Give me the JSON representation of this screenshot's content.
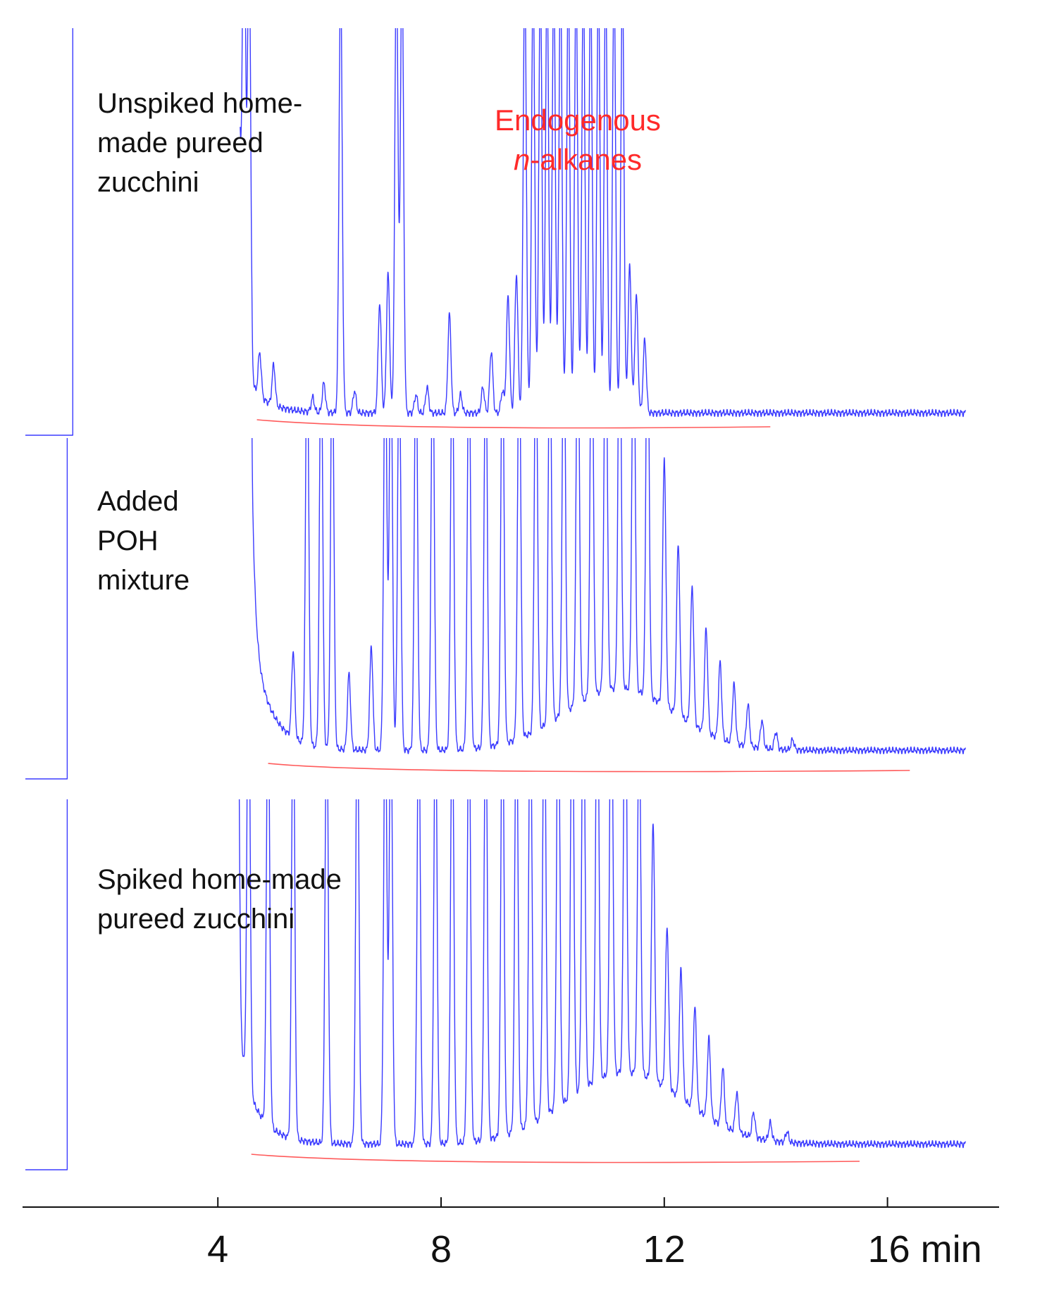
{
  "chart_data": {
    "type": "line",
    "xlabel": "",
    "ylabel": "",
    "xunit": "min",
    "xlim": [
      0.5,
      18.0
    ],
    "xticks": [
      4,
      8,
      12,
      16
    ],
    "xtick_labels": [
      "4",
      "8",
      "12",
      "16 min"
    ],
    "grid": false,
    "legend": "none",
    "colors": {
      "trace": "#3b3bff",
      "baseline": "#ff5a5a",
      "annotation": "#ff2a2a"
    },
    "panels": [
      {
        "label_lines": [
          "Unspiked home-",
          "made pureed",
          "zucchini"
        ],
        "annotation_lines": [
          "Endogenous",
          "n-alkanes"
        ],
        "solvent_delay_end": 1.4,
        "trace_start": 4.4,
        "run_end": 17.4,
        "background_decay": 0.12,
        "tail_level": 0.03,
        "peaks": [
          {
            "t": 4.47,
            "h": 1.2
          },
          {
            "t": 4.56,
            "h": 1.2
          },
          {
            "t": 4.75,
            "h": 0.12
          },
          {
            "t": 5.0,
            "h": 0.11
          },
          {
            "t": 5.7,
            "h": 0.04
          },
          {
            "t": 5.9,
            "h": 0.08
          },
          {
            "t": 6.2,
            "h": 1.2
          },
          {
            "t": 6.45,
            "h": 0.06
          },
          {
            "t": 6.9,
            "h": 0.3
          },
          {
            "t": 7.05,
            "h": 0.38
          },
          {
            "t": 7.2,
            "h": 1.25
          },
          {
            "t": 7.3,
            "h": 1.25
          },
          {
            "t": 7.55,
            "h": 0.05
          },
          {
            "t": 7.75,
            "h": 0.07
          },
          {
            "t": 8.15,
            "h": 0.27
          },
          {
            "t": 8.35,
            "h": 0.05
          },
          {
            "t": 8.75,
            "h": 0.07
          },
          {
            "t": 8.9,
            "h": 0.17
          },
          {
            "t": 9.1,
            "h": 0.06
          },
          {
            "t": 9.2,
            "h": 0.32
          },
          {
            "t": 9.35,
            "h": 0.38
          },
          {
            "t": 9.5,
            "h": 1.2
          },
          {
            "t": 9.65,
            "h": 1.2
          },
          {
            "t": 9.78,
            "h": 1.2
          },
          {
            "t": 9.9,
            "h": 1.2
          },
          {
            "t": 10.02,
            "h": 1.2
          },
          {
            "t": 10.14,
            "h": 1.2
          },
          {
            "t": 10.28,
            "h": 1.2
          },
          {
            "t": 10.42,
            "h": 1.2
          },
          {
            "t": 10.55,
            "h": 1.2
          },
          {
            "t": 10.68,
            "h": 1.2
          },
          {
            "t": 10.82,
            "h": 1.2
          },
          {
            "t": 10.95,
            "h": 1.2
          },
          {
            "t": 11.1,
            "h": 1.2
          },
          {
            "t": 11.25,
            "h": 1.2
          },
          {
            "t": 11.38,
            "h": 0.4
          },
          {
            "t": 11.5,
            "h": 0.32
          },
          {
            "t": 11.65,
            "h": 0.2
          }
        ]
      },
      {
        "label_lines": [
          "Added",
          "POH",
          "mixture"
        ],
        "annotation_lines": [],
        "solvent_delay_end": 1.3,
        "trace_start": 4.6,
        "run_end": 17.4,
        "background_decay": 0.32,
        "tail_level": 0.05,
        "hump": {
          "t": 11.2,
          "h": 0.18,
          "w": 1.4
        },
        "peaks": [
          {
            "t": 4.55,
            "h": 1.25
          },
          {
            "t": 5.35,
            "h": 0.25
          },
          {
            "t": 5.6,
            "h": 1.2
          },
          {
            "t": 5.85,
            "h": 1.2
          },
          {
            "t": 6.05,
            "h": 1.2
          },
          {
            "t": 6.35,
            "h": 0.22
          },
          {
            "t": 6.75,
            "h": 0.3
          },
          {
            "t": 7.0,
            "h": 1.2
          },
          {
            "t": 7.1,
            "h": 1.2
          },
          {
            "t": 7.25,
            "h": 1.2
          },
          {
            "t": 7.55,
            "h": 1.2
          },
          {
            "t": 7.85,
            "h": 1.2
          },
          {
            "t": 8.2,
            "h": 1.2
          },
          {
            "t": 8.5,
            "h": 1.2
          },
          {
            "t": 8.8,
            "h": 1.2
          },
          {
            "t": 9.1,
            "h": 1.2
          },
          {
            "t": 9.4,
            "h": 1.2
          },
          {
            "t": 9.7,
            "h": 1.2
          },
          {
            "t": 9.95,
            "h": 1.2
          },
          {
            "t": 10.2,
            "h": 1.2
          },
          {
            "t": 10.45,
            "h": 1.2
          },
          {
            "t": 10.7,
            "h": 1.2
          },
          {
            "t": 10.95,
            "h": 1.2
          },
          {
            "t": 11.2,
            "h": 1.2
          },
          {
            "t": 11.45,
            "h": 1.2
          },
          {
            "t": 11.7,
            "h": 1.2
          },
          {
            "t": 12.0,
            "h": 0.72
          },
          {
            "t": 12.25,
            "h": 0.5
          },
          {
            "t": 12.5,
            "h": 0.4
          },
          {
            "t": 12.75,
            "h": 0.3
          },
          {
            "t": 13.0,
            "h": 0.22
          },
          {
            "t": 13.25,
            "h": 0.17
          },
          {
            "t": 13.5,
            "h": 0.12
          },
          {
            "t": 13.75,
            "h": 0.08
          },
          {
            "t": 14.0,
            "h": 0.05
          },
          {
            "t": 14.3,
            "h": 0.03
          }
        ]
      },
      {
        "label_lines": [
          "Spiked home-made",
          "pureed zucchini"
        ],
        "annotation_lines": [],
        "solvent_delay_end": 1.3,
        "trace_start": 4.3,
        "run_end": 17.4,
        "background_decay": 0.3,
        "tail_level": 0.04,
        "hump": {
          "t": 11.3,
          "h": 0.2,
          "w": 1.5
        },
        "peaks": [
          {
            "t": 4.35,
            "h": 1.25
          },
          {
            "t": 4.55,
            "h": 1.25
          },
          {
            "t": 4.9,
            "h": 1.25
          },
          {
            "t": 5.35,
            "h": 1.25
          },
          {
            "t": 5.95,
            "h": 1.25
          },
          {
            "t": 6.5,
            "h": 1.25
          },
          {
            "t": 7.0,
            "h": 1.25
          },
          {
            "t": 7.1,
            "h": 1.25
          },
          {
            "t": 7.6,
            "h": 1.25
          },
          {
            "t": 7.9,
            "h": 1.25
          },
          {
            "t": 8.2,
            "h": 1.25
          },
          {
            "t": 8.5,
            "h": 1.25
          },
          {
            "t": 8.8,
            "h": 1.25
          },
          {
            "t": 9.1,
            "h": 1.25
          },
          {
            "t": 9.35,
            "h": 1.25
          },
          {
            "t": 9.6,
            "h": 1.25
          },
          {
            "t": 9.85,
            "h": 1.25
          },
          {
            "t": 10.1,
            "h": 1.25
          },
          {
            "t": 10.35,
            "h": 1.25
          },
          {
            "t": 10.55,
            "h": 1.25
          },
          {
            "t": 10.8,
            "h": 1.25
          },
          {
            "t": 11.05,
            "h": 1.25
          },
          {
            "t": 11.3,
            "h": 1.25
          },
          {
            "t": 11.55,
            "h": 1.0
          },
          {
            "t": 11.8,
            "h": 0.72
          },
          {
            "t": 12.05,
            "h": 0.45
          },
          {
            "t": 12.3,
            "h": 0.36
          },
          {
            "t": 12.55,
            "h": 0.28
          },
          {
            "t": 12.8,
            "h": 0.22
          },
          {
            "t": 13.05,
            "h": 0.16
          },
          {
            "t": 13.3,
            "h": 0.11
          },
          {
            "t": 13.6,
            "h": 0.07
          },
          {
            "t": 13.9,
            "h": 0.05
          },
          {
            "t": 14.2,
            "h": 0.03
          }
        ]
      }
    ]
  }
}
